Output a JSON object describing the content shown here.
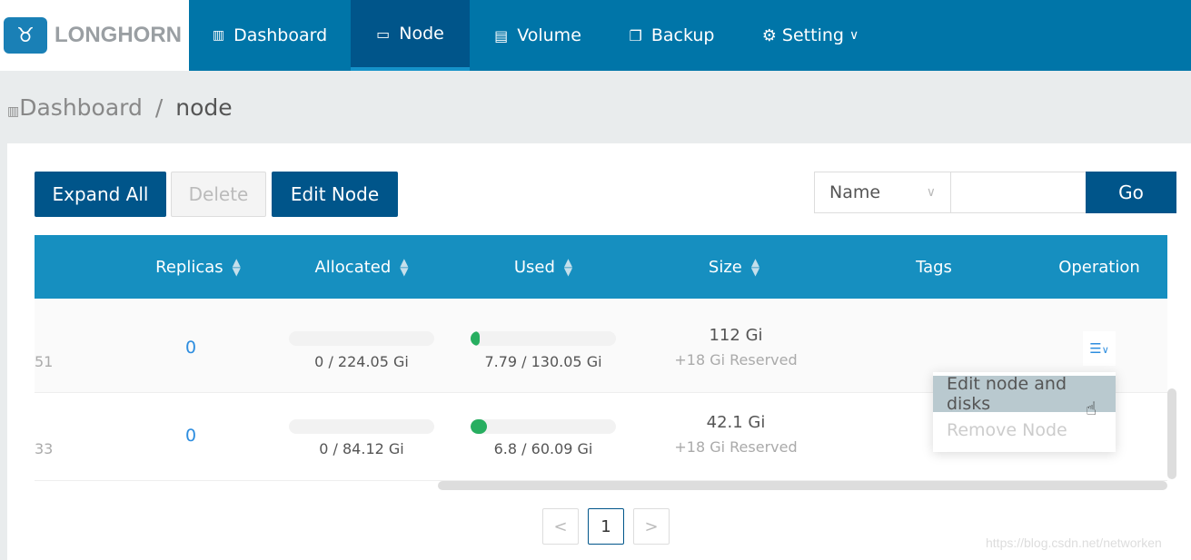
{
  "brand": {
    "name": "LONGHORN"
  },
  "nav": [
    {
      "label": "Dashboard",
      "icon": "bar-chart-icon"
    },
    {
      "label": "Node",
      "icon": "laptop-icon",
      "active": true
    },
    {
      "label": "Volume",
      "icon": "database-icon"
    },
    {
      "label": "Backup",
      "icon": "copy-icon"
    },
    {
      "label": "Setting",
      "icon": "gear-icon"
    }
  ],
  "breadcrumb": {
    "root": "Dashboard",
    "sep": "/",
    "current": "node"
  },
  "toolbar": {
    "expand_all": "Expand All",
    "delete": "Delete",
    "edit_node": "Edit Node"
  },
  "search": {
    "field": "Name",
    "value": "",
    "go": "Go"
  },
  "table": {
    "headers": [
      "Replicas",
      "Allocated",
      "Used",
      "Size",
      "Tags",
      "Operation"
    ],
    "rows": [
      {
        "name_suffix": "51",
        "replicas": "0",
        "allocated": "0 / 224.05 Gi",
        "allocated_pct": 0,
        "used": "7.79 / 130.05 Gi",
        "used_pct": 6,
        "size": "112 Gi",
        "reserved": "+18 Gi Reserved",
        "tags": ""
      },
      {
        "name_suffix": "33",
        "replicas": "0",
        "allocated": "0 / 84.12 Gi",
        "allocated_pct": 0,
        "used": "6.8 / 60.09 Gi",
        "used_pct": 11,
        "size": "42.1 Gi",
        "reserved": "+18 Gi Reserved",
        "tags": ""
      }
    ]
  },
  "operation_menu": {
    "items": [
      "Edit node and disks",
      "Remove Node"
    ],
    "hover_color": "#b9c9cf"
  },
  "pagination": {
    "prev": "<",
    "current": "1",
    "next": ">"
  },
  "watermark": "https://blog.csdn.net/networken",
  "colors": {
    "nav": "#0075a8",
    "nav_active": "#00558a",
    "header": "#168fc0",
    "progress": "#27ae60",
    "link": "#2d8ddf"
  }
}
